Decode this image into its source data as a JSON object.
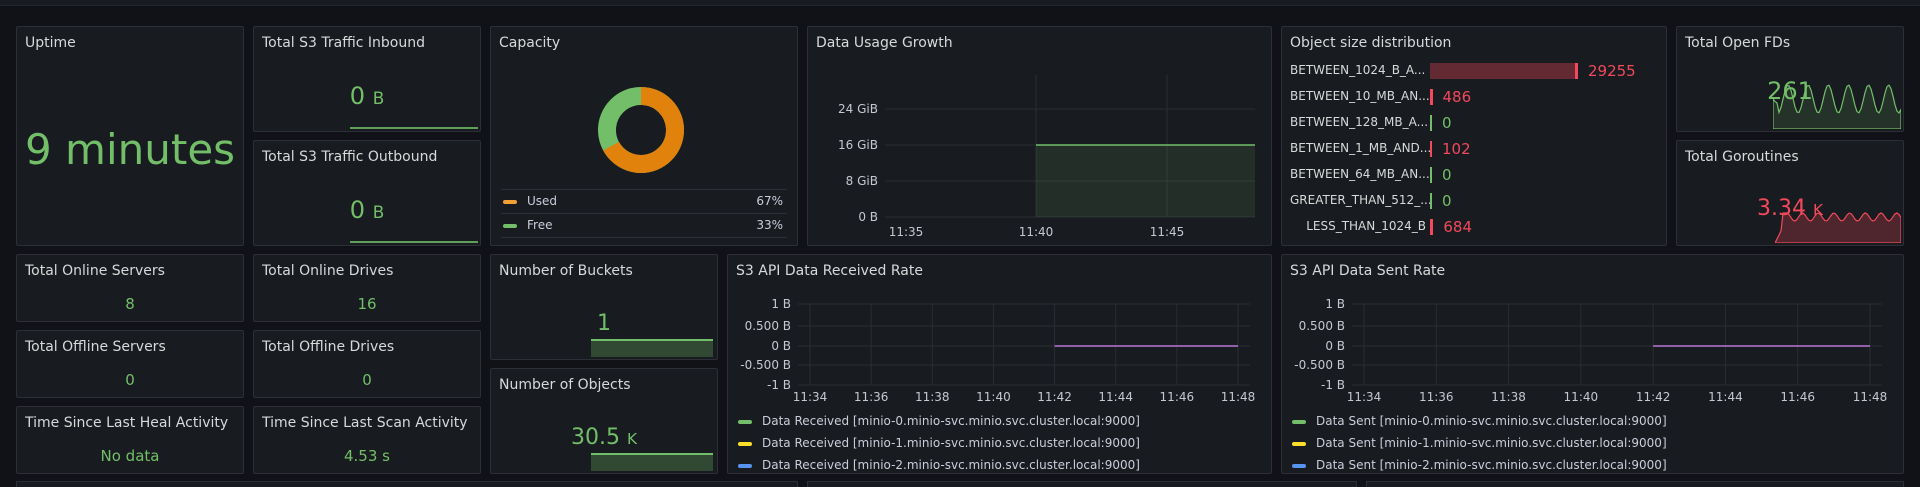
{
  "uptime": {
    "title": "Uptime",
    "value": "9 minutes"
  },
  "inbound": {
    "title": "Total S3 Traffic Inbound",
    "value": "0",
    "unit": "B"
  },
  "outbound": {
    "title": "Total S3 Traffic Outbound",
    "value": "0",
    "unit": "B"
  },
  "capacity": {
    "title": "Capacity",
    "legend": [
      {
        "name": "Used",
        "pct": "67%",
        "color": "#f2a033"
      },
      {
        "name": "Free",
        "pct": "33%",
        "color": "#73bf69"
      }
    ],
    "used_fraction": 0.67
  },
  "growth": {
    "title": "Data Usage Growth",
    "y_ticks": [
      "24 GiB",
      "16 GiB",
      "8 GiB",
      "0 B"
    ],
    "x_ticks": [
      "11:35",
      "11:40",
      "11:45"
    ],
    "chart_data": {
      "type": "area",
      "ylim_gib": [
        0,
        30
      ],
      "start": "11:40",
      "end": "11:48",
      "value_gib": 16
    }
  },
  "osd": {
    "title": "Object size distribution",
    "rows": [
      {
        "label": "BETWEEN_1024_B_A...",
        "value": "29255",
        "fraction": 1.0,
        "color": "#f2495c"
      },
      {
        "label": "BETWEEN_10_MB_AN...",
        "value": "486",
        "fraction": 0.017,
        "color": "#f2495c"
      },
      {
        "label": "BETWEEN_128_MB_A...",
        "value": "0",
        "fraction": 0.0,
        "color": "#73bf69"
      },
      {
        "label": "BETWEEN_1_MB_AND...",
        "value": "102",
        "fraction": 0.004,
        "color": "#f2495c"
      },
      {
        "label": "BETWEEN_64_MB_AN...",
        "value": "0",
        "fraction": 0.0,
        "color": "#73bf69"
      },
      {
        "label": "GREATER_THAN_512_...",
        "value": "0",
        "fraction": 0.0,
        "color": "#73bf69"
      },
      {
        "label": "LESS_THAN_1024_B",
        "value": "684",
        "fraction": 0.023,
        "color": "#f2495c"
      }
    ]
  },
  "fds": {
    "title": "Total Open FDs",
    "value": "261"
  },
  "goroutines": {
    "title": "Total Goroutines",
    "value": "3.34",
    "unit": "K"
  },
  "online_servers": {
    "title": "Total Online Servers",
    "value": "8"
  },
  "online_drives": {
    "title": "Total Online Drives",
    "value": "16"
  },
  "offline_servers": {
    "title": "Total Offline Servers",
    "value": "0"
  },
  "offline_drives": {
    "title": "Total Offline Drives",
    "value": "0"
  },
  "heal": {
    "title": "Time Since Last Heal Activity",
    "value": "No data"
  },
  "scan": {
    "title": "Time Since Last Scan Activity",
    "value": "4.53 s"
  },
  "buckets": {
    "title": "Number of Buckets",
    "value": "1"
  },
  "objects": {
    "title": "Number of Objects",
    "value": "30.5",
    "unit": "K"
  },
  "received": {
    "title": "S3 API Data Received Rate",
    "y_ticks": [
      "1 B",
      "0.500 B",
      "0 B",
      "-0.500 B",
      "-1 B"
    ],
    "x_ticks": [
      "11:34",
      "11:36",
      "11:38",
      "11:40",
      "11:42",
      "11:44",
      "11:46",
      "11:48"
    ],
    "legend": [
      {
        "name": "Data Received [minio-0.minio-svc.minio.svc.cluster.local:9000]",
        "color": "#73bf69"
      },
      {
        "name": "Data Received [minio-1.minio-svc.minio.svc.cluster.local:9000]",
        "color": "#fade2a"
      },
      {
        "name": "Data Received [minio-2.minio-svc.minio.svc.cluster.local:9000]",
        "color": "#5794f2"
      }
    ]
  },
  "sent": {
    "title": "S3 API Data Sent Rate",
    "y_ticks": [
      "1 B",
      "0.500 B",
      "0 B",
      "-0.500 B",
      "-1 B"
    ],
    "x_ticks": [
      "11:34",
      "11:36",
      "11:38",
      "11:40",
      "11:42",
      "11:44",
      "11:46",
      "11:48"
    ],
    "legend": [
      {
        "name": "Data Sent [minio-0.minio-svc.minio.svc.cluster.local:9000]",
        "color": "#73bf69"
      },
      {
        "name": "Data Sent [minio-1.minio-svc.minio.svc.cluster.local:9000]",
        "color": "#fade2a"
      },
      {
        "name": "Data Sent [minio-2.minio-svc.minio.svc.cluster.local:9000]",
        "color": "#5794f2"
      }
    ]
  }
}
